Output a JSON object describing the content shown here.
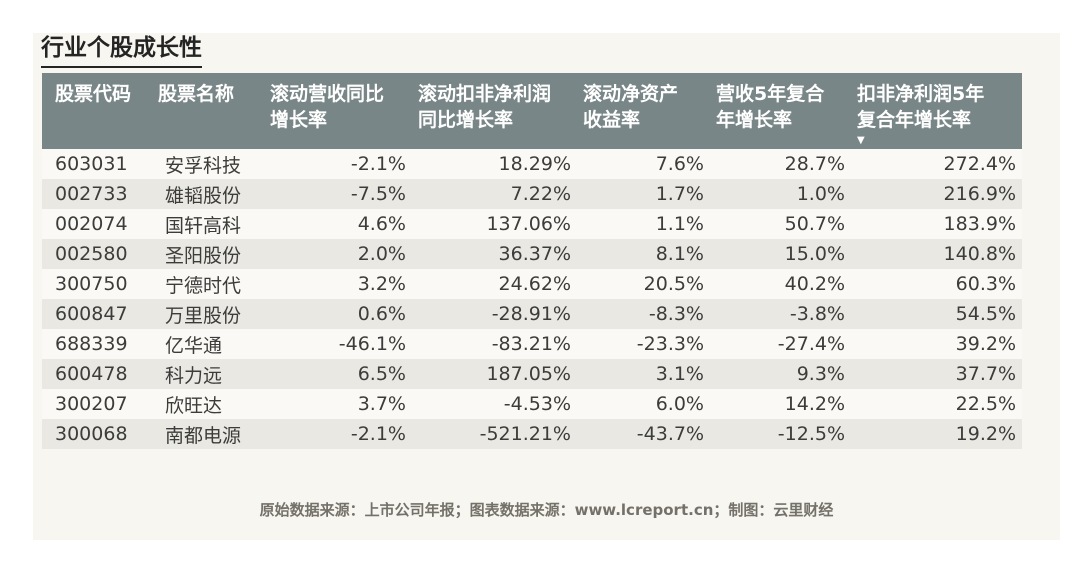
{
  "title": "行业个股成长性",
  "colors": {
    "header_bg": "#798687",
    "header_text": "#ffffff",
    "row_odd_bg": "#faf9f6",
    "row_even_bg": "#e9e8e3",
    "panel_bg": "#f7f6f0",
    "page_bg": "#ffffff",
    "data_text": "#3c3c3a",
    "title_text": "#242424",
    "footer_text": "#74716a"
  },
  "table": {
    "sort_icon": "▼",
    "columns": [
      {
        "id": "code",
        "lines": [
          "股票代码"
        ]
      },
      {
        "id": "name",
        "lines": [
          "股票名称"
        ]
      },
      {
        "id": "rev_yoy",
        "lines": [
          "滚动营收同比",
          "增长率"
        ]
      },
      {
        "id": "np_yoy",
        "lines": [
          "滚动扣非净利润",
          "同比增长率"
        ]
      },
      {
        "id": "roe",
        "lines": [
          "滚动净资产",
          "收益率"
        ]
      },
      {
        "id": "rev_cagr5",
        "lines": [
          "营收5年复合",
          "年增长率"
        ]
      },
      {
        "id": "np_cagr5",
        "lines": [
          "扣非净利润5年",
          "复合年增长率"
        ],
        "sort": "desc"
      }
    ],
    "rows": [
      {
        "code": "603031",
        "name": "安孚科技",
        "rev_yoy": "-2.1%",
        "np_yoy": "18.29%",
        "roe": "7.6%",
        "rev_cagr5": "28.7%",
        "np_cagr5": "272.4%"
      },
      {
        "code": "002733",
        "name": "雄韬股份",
        "rev_yoy": "-7.5%",
        "np_yoy": "7.22%",
        "roe": "1.7%",
        "rev_cagr5": "1.0%",
        "np_cagr5": "216.9%"
      },
      {
        "code": "002074",
        "name": "国轩高科",
        "rev_yoy": "4.6%",
        "np_yoy": "137.06%",
        "roe": "1.1%",
        "rev_cagr5": "50.7%",
        "np_cagr5": "183.9%"
      },
      {
        "code": "002580",
        "name": "圣阳股份",
        "rev_yoy": "2.0%",
        "np_yoy": "36.37%",
        "roe": "8.1%",
        "rev_cagr5": "15.0%",
        "np_cagr5": "140.8%"
      },
      {
        "code": "300750",
        "name": "宁德时代",
        "rev_yoy": "3.2%",
        "np_yoy": "24.62%",
        "roe": "20.5%",
        "rev_cagr5": "40.2%",
        "np_cagr5": "60.3%"
      },
      {
        "code": "600847",
        "name": "万里股份",
        "rev_yoy": "0.6%",
        "np_yoy": "-28.91%",
        "roe": "-8.3%",
        "rev_cagr5": "-3.8%",
        "np_cagr5": "54.5%"
      },
      {
        "code": "688339",
        "name": "亿华通",
        "rev_yoy": "-46.1%",
        "np_yoy": "-83.21%",
        "roe": "-23.3%",
        "rev_cagr5": "-27.4%",
        "np_cagr5": "39.2%"
      },
      {
        "code": "600478",
        "name": "科力远",
        "rev_yoy": "6.5%",
        "np_yoy": "187.05%",
        "roe": "3.1%",
        "rev_cagr5": "9.3%",
        "np_cagr5": "37.7%"
      },
      {
        "code": "300207",
        "name": "欣旺达",
        "rev_yoy": "3.7%",
        "np_yoy": "-4.53%",
        "roe": "6.0%",
        "rev_cagr5": "14.2%",
        "np_cagr5": "22.5%"
      },
      {
        "code": "300068",
        "name": "南都电源",
        "rev_yoy": "-2.1%",
        "np_yoy": "-521.21%",
        "roe": "-43.7%",
        "rev_cagr5": "-12.5%",
        "np_cagr5": "19.2%"
      }
    ]
  },
  "footer": {
    "source_note": "原始数据来源：上市公司年报；图表数据来源：www.lcreport.cn；制图：云里财经"
  },
  "chart_data": {
    "type": "table",
    "title": "行业个股成长性",
    "columns": [
      "股票代码",
      "股票名称",
      "滚动营收同比增长率",
      "滚动扣非净利润同比增长率",
      "滚动净资产收益率",
      "营收5年复合年增长率",
      "扣非净利润5年复合年增长率"
    ],
    "units": "%",
    "sorted_by": "扣非净利润5年复合年增长率",
    "sort_order": "descending",
    "rows": [
      [
        "603031",
        "安孚科技",
        -2.1,
        18.29,
        7.6,
        28.7,
        272.4
      ],
      [
        "002733",
        "雄韬股份",
        -7.5,
        7.22,
        1.7,
        1.0,
        216.9
      ],
      [
        "002074",
        "国轩高科",
        4.6,
        137.06,
        1.1,
        50.7,
        183.9
      ],
      [
        "002580",
        "圣阳股份",
        2.0,
        36.37,
        8.1,
        15.0,
        140.8
      ],
      [
        "300750",
        "宁德时代",
        3.2,
        24.62,
        20.5,
        40.2,
        60.3
      ],
      [
        "600847",
        "万里股份",
        0.6,
        -28.91,
        -8.3,
        -3.8,
        54.5
      ],
      [
        "688339",
        "亿华通",
        -46.1,
        -83.21,
        -23.3,
        -27.4,
        39.2
      ],
      [
        "600478",
        "科力远",
        6.5,
        187.05,
        3.1,
        9.3,
        37.7
      ],
      [
        "300207",
        "欣旺达",
        3.7,
        -4.53,
        6.0,
        14.2,
        22.5
      ],
      [
        "300068",
        "南都电源",
        -2.1,
        -521.21,
        -43.7,
        -12.5,
        19.2
      ]
    ]
  }
}
